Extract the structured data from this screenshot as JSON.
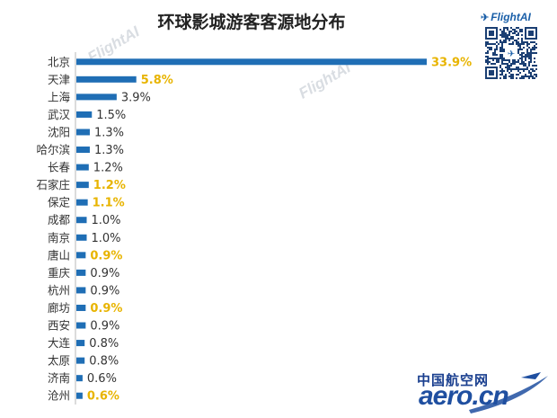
{
  "chart_data": {
    "type": "bar",
    "orientation": "horizontal",
    "title": "环球影城游客客源地分布",
    "categories": [
      "北京",
      "天津",
      "上海",
      "武汉",
      "沈阳",
      "哈尔滨",
      "长春",
      "石家庄",
      "保定",
      "成都",
      "南京",
      "唐山",
      "重庆",
      "杭州",
      "廊坊",
      "西安",
      "大连",
      "太原",
      "济南",
      "沧州"
    ],
    "values": [
      33.9,
      5.8,
      3.9,
      1.5,
      1.3,
      1.3,
      1.2,
      1.2,
      1.1,
      1.0,
      1.0,
      0.9,
      0.9,
      0.9,
      0.9,
      0.9,
      0.8,
      0.8,
      0.6,
      0.6
    ],
    "labels": [
      "33.9%",
      "5.8%",
      "3.9%",
      "1.5%",
      "1.3%",
      "1.3%",
      "1.2%",
      "1.2%",
      "1.1%",
      "1.0%",
      "1.0%",
      "0.9%",
      "0.9%",
      "0.9%",
      "0.9%",
      "0.9%",
      "0.8%",
      "0.8%",
      "0.6%",
      "0.6%"
    ],
    "highlighted": [
      "北京",
      "天津",
      "石家庄",
      "保定",
      "唐山",
      "廊坊",
      "沧州"
    ],
    "bar_color": "#1f6eb5",
    "label_color": "#333333",
    "highlight_color": "#e8b400",
    "xlim": [
      0,
      33.9
    ],
    "grid": false,
    "legend": "none"
  },
  "watermark": "FlightAI",
  "logo": {
    "text": "FlightAI",
    "icon": "plane-icon"
  },
  "qr_code": {
    "icon": "qr-code-icon"
  },
  "footer_logo": {
    "cn": "中国航空网",
    "en": "aero.cn"
  }
}
